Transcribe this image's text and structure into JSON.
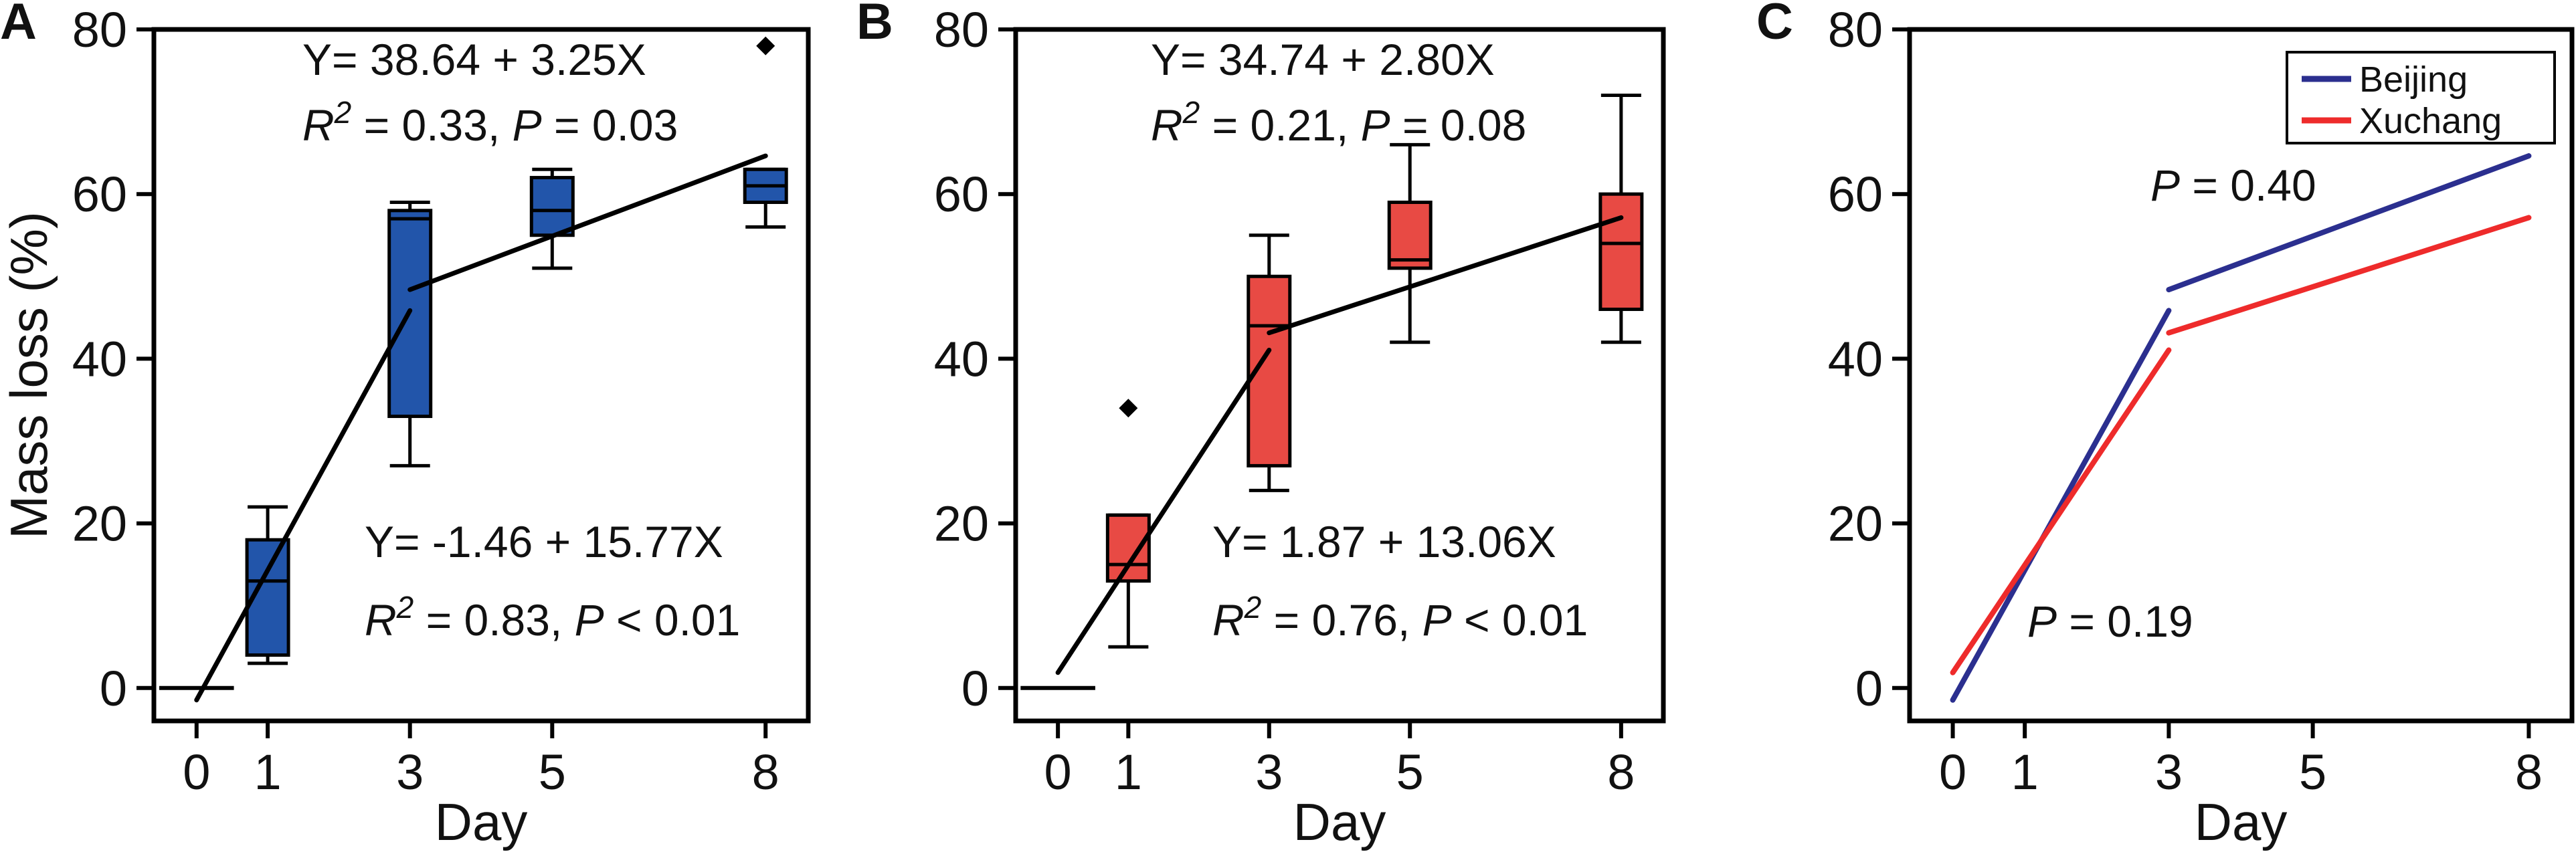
{
  "chart_data": [
    {
      "panel": "A",
      "type": "box",
      "xlabel": "Day",
      "ylabel": "Mass loss (%)",
      "xlim": [
        -0.6,
        8.6
      ],
      "ylim": [
        -4,
        80
      ],
      "xticks": [
        0,
        1,
        3,
        5,
        8
      ],
      "yticks": [
        0,
        20,
        40,
        60,
        80
      ],
      "box_color": "#2255aa",
      "boxes": [
        {
          "x": 0,
          "min": 0,
          "q1": 0,
          "median": 0,
          "q3": 0,
          "max": 0,
          "outliers": []
        },
        {
          "x": 1,
          "min": 3,
          "q1": 4,
          "median": 13,
          "q3": 18,
          "max": 22,
          "outliers": []
        },
        {
          "x": 3,
          "min": 27,
          "q1": 33,
          "median": 57,
          "q3": 58,
          "max": 59,
          "outliers": []
        },
        {
          "x": 5,
          "min": 51,
          "q1": 55,
          "median": 58,
          "q3": 62,
          "max": 63,
          "outliers": []
        },
        {
          "x": 8,
          "min": 56,
          "q1": 59,
          "median": 61,
          "q3": 63,
          "max": 63,
          "outliers": [
            78
          ]
        }
      ],
      "fits": [
        {
          "intercept": -1.46,
          "slope": 15.77,
          "x_from": 0,
          "x_to": 3
        },
        {
          "intercept": 38.64,
          "slope": 3.25,
          "x_from": 3,
          "x_to": 8
        }
      ],
      "annotations": [
        {
          "id": "a-upper-eq",
          "segments": [
            {
              "text": "Y= 38.64 + 3.25X"
            }
          ]
        },
        {
          "id": "a-upper-stat",
          "segments": [
            {
              "text": "R",
              "italic": true
            },
            {
              "text": "2",
              "sup": true,
              "italic": true
            },
            {
              "text": " = 0.33, "
            },
            {
              "text": "P",
              "italic": true
            },
            {
              "text": " = 0.03"
            }
          ]
        },
        {
          "id": "a-lower-eq",
          "segments": [
            {
              "text": "Y= -1.46 + 15.77X"
            }
          ]
        },
        {
          "id": "a-lower-stat",
          "segments": [
            {
              "text": "R",
              "italic": true
            },
            {
              "text": "2",
              "sup": true,
              "italic": true
            },
            {
              "text": " = 0.83, "
            },
            {
              "text": "P",
              "italic": true
            },
            {
              "text": " < 0.01"
            }
          ]
        }
      ]
    },
    {
      "panel": "B",
      "type": "box",
      "xlabel": "Day",
      "ylabel": "",
      "xlim": [
        -0.6,
        8.6
      ],
      "ylim": [
        -4,
        80
      ],
      "xticks": [
        0,
        1,
        3,
        5,
        8
      ],
      "yticks": [
        0,
        20,
        40,
        60,
        80
      ],
      "box_color": "#e84a44",
      "boxes": [
        {
          "x": 0,
          "min": 0,
          "q1": 0,
          "median": 0,
          "q3": 0,
          "max": 0,
          "outliers": []
        },
        {
          "x": 1,
          "min": 5,
          "q1": 13,
          "median": 15,
          "q3": 21,
          "max": 21,
          "outliers": [
            34
          ]
        },
        {
          "x": 3,
          "min": 24,
          "q1": 27,
          "median": 44,
          "q3": 50,
          "max": 55,
          "outliers": []
        },
        {
          "x": 5,
          "min": 42,
          "q1": 51,
          "median": 52,
          "q3": 59,
          "max": 66,
          "outliers": []
        },
        {
          "x": 8,
          "min": 42,
          "q1": 46,
          "median": 54,
          "q3": 60,
          "max": 72,
          "outliers": []
        }
      ],
      "fits": [
        {
          "intercept": 1.87,
          "slope": 13.06,
          "x_from": 0,
          "x_to": 3
        },
        {
          "intercept": 34.74,
          "slope": 2.8,
          "x_from": 3,
          "x_to": 8
        }
      ],
      "annotations": [
        {
          "id": "b-upper-eq",
          "segments": [
            {
              "text": "Y= 34.74 + 2.80X"
            }
          ]
        },
        {
          "id": "b-upper-stat",
          "segments": [
            {
              "text": "R",
              "italic": true
            },
            {
              "text": "2",
              "sup": true,
              "italic": true
            },
            {
              "text": " = 0.21, "
            },
            {
              "text": "P",
              "italic": true
            },
            {
              "text": " = 0.08"
            }
          ]
        },
        {
          "id": "b-lower-eq",
          "segments": [
            {
              "text": "Y= 1.87 + 13.06X"
            }
          ]
        },
        {
          "id": "b-lower-stat",
          "segments": [
            {
              "text": "R",
              "italic": true
            },
            {
              "text": "2",
              "sup": true,
              "italic": true
            },
            {
              "text": " = 0.76, "
            },
            {
              "text": "P",
              "italic": true
            },
            {
              "text": " < 0.01"
            }
          ]
        }
      ]
    },
    {
      "panel": "C",
      "type": "line",
      "xlabel": "Day",
      "ylabel": "",
      "xlim": [
        -0.6,
        8.6
      ],
      "ylim": [
        -4,
        80
      ],
      "xticks": [
        0,
        1,
        3,
        5,
        8
      ],
      "yticks": [
        0,
        20,
        40,
        60,
        80
      ],
      "legend": "top-right",
      "series": [
        {
          "name": "Beijing",
          "color": "#2b2f8f",
          "segments": [
            {
              "x": [
                0,
                3
              ],
              "y": [
                -1.46,
                45.85
              ]
            },
            {
              "x": [
                3,
                8
              ],
              "y": [
                48.39,
                64.64
              ]
            }
          ]
        },
        {
          "name": "Xuchang",
          "color": "#ee2b2b",
          "segments": [
            {
              "x": [
                0,
                3
              ],
              "y": [
                1.87,
                41.05
              ]
            },
            {
              "x": [
                3,
                8
              ],
              "y": [
                43.14,
                57.14
              ]
            }
          ]
        }
      ],
      "annotations": [
        {
          "id": "c-upper-p",
          "segments": [
            {
              "text": "P",
              "italic": true
            },
            {
              "text": " = 0.40"
            }
          ]
        },
        {
          "id": "c-lower-p",
          "segments": [
            {
              "text": "P",
              "italic": true
            },
            {
              "text": " = 0.19"
            }
          ]
        }
      ]
    }
  ]
}
